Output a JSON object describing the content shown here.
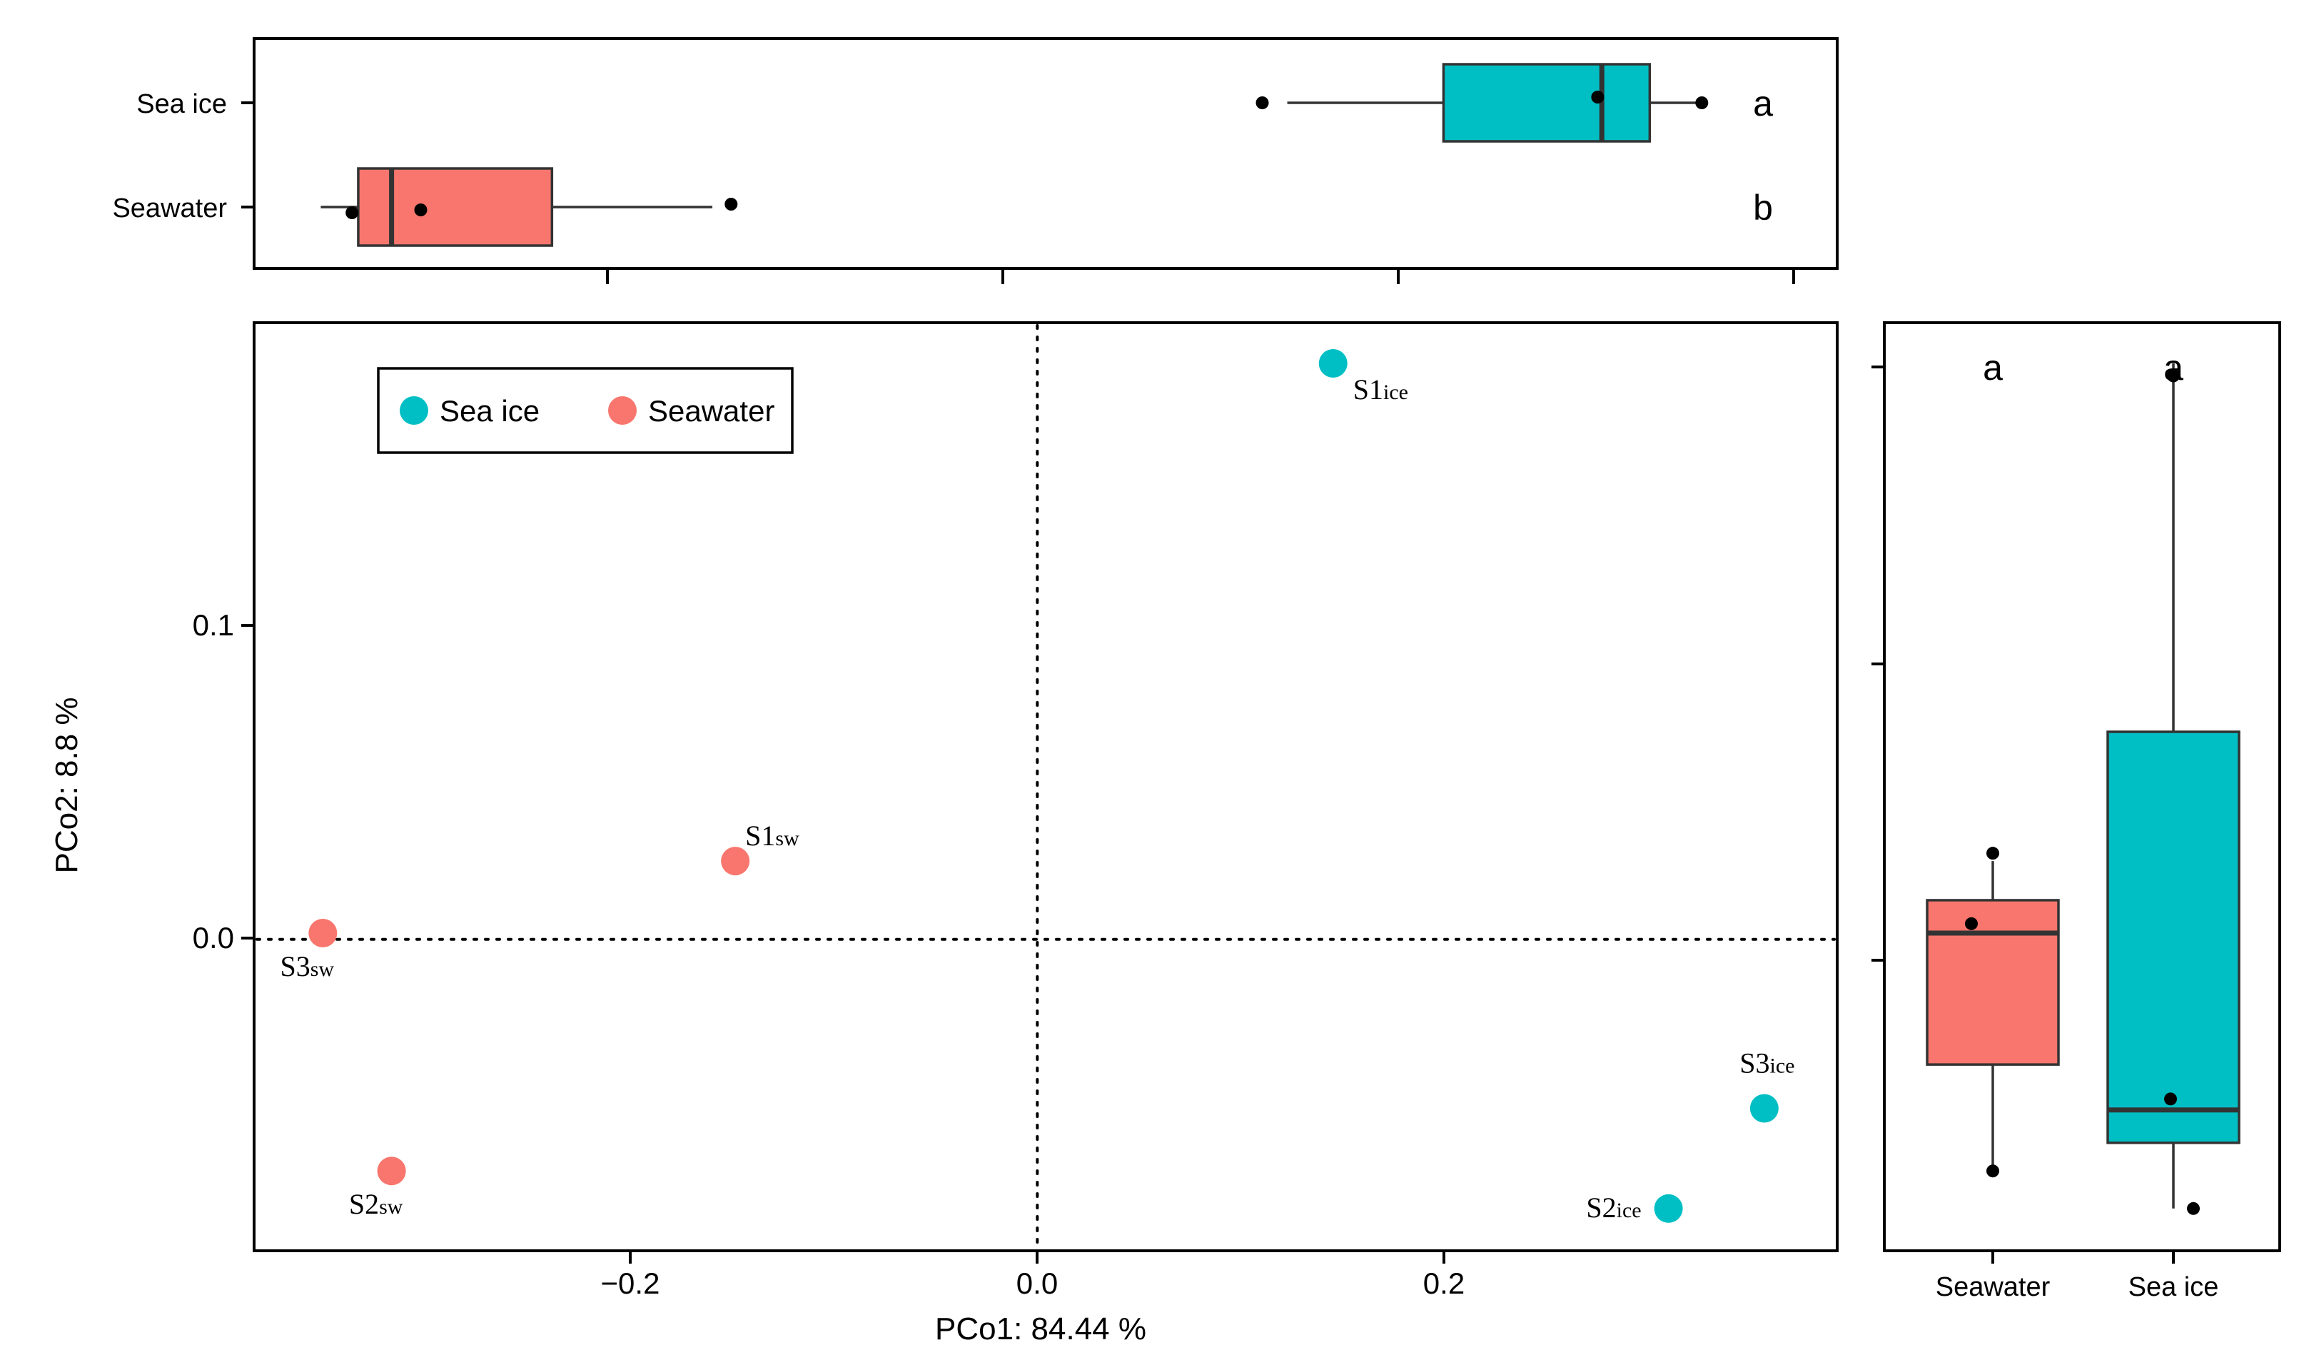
{
  "colors": {
    "sea_ice": "#00BFC4",
    "seawater": "#F8766D"
  },
  "chart_data": [
    {
      "name": "pcoa-scatter",
      "type": "scatter",
      "xlabel": "PCo1:  84.44 %",
      "ylabel": "PCo2:  8.8 %",
      "xlim": [
        -0.376,
        0.384
      ],
      "ylim": [
        -0.0995,
        0.197
      ],
      "xticks": [
        -0.2,
        0.0,
        0.2
      ],
      "xtick_labels": [
        "−0.2",
        "0.0",
        "0.2"
      ],
      "yticks": [
        0.0,
        0.1
      ],
      "ytick_labels": [
        "0.0",
        "0.1"
      ],
      "reference_lines": {
        "x": 0,
        "y": 0,
        "style": "dotted"
      },
      "legend": {
        "position": "top-left",
        "entries": [
          {
            "label": "Sea ice",
            "color": "#00BFC4"
          },
          {
            "label": "Seawater",
            "color": "#F8766D"
          }
        ]
      },
      "series": [
        {
          "name": "Sea ice",
          "color": "#00BFC4",
          "points": [
            {
              "base": "S1",
              "sub": "ice",
              "x": 0.142,
              "y": 0.184,
              "label_pos": "below-right"
            },
            {
              "base": "S2",
              "sub": "ice",
              "x": 0.303,
              "y": -0.086,
              "label_pos": "left"
            },
            {
              "base": "S3",
              "sub": "ice",
              "x": 0.349,
              "y": -0.054,
              "label_pos": "above"
            }
          ]
        },
        {
          "name": "Seawater",
          "color": "#F8766D",
          "points": [
            {
              "base": "S1",
              "sub": "sw",
              "x": -0.145,
              "y": 0.025,
              "label_pos": "above-right"
            },
            {
              "base": "S2",
              "sub": "sw",
              "x": -0.31,
              "y": -0.074,
              "label_pos": "below"
            },
            {
              "base": "S3",
              "sub": "sw",
              "x": -0.343,
              "y": 0.002,
              "label_pos": "below"
            }
          ]
        }
      ]
    },
    {
      "name": "pco1-boxplot",
      "type": "boxplot",
      "orientation": "horizontal",
      "categories": [
        "Sea ice",
        "Seawater"
      ],
      "significance_letters": [
        "a",
        "b"
      ],
      "boxes": [
        {
          "group": "Sea ice",
          "color": "#00BFC4",
          "whisker_low": 0.12,
          "q1": 0.195,
          "median": 0.271,
          "q3": 0.294,
          "whisker_high": 0.316,
          "points": [
            0.108,
            0.269,
            0.319
          ]
        },
        {
          "group": "Seawater",
          "color": "#F8766D",
          "whisker_low": -0.344,
          "q1": -0.326,
          "median": -0.31,
          "q3": -0.233,
          "whisker_high": -0.156,
          "points": [
            -0.329,
            -0.296,
            -0.147
          ]
        }
      ]
    },
    {
      "name": "pco2-boxplot",
      "type": "boxplot",
      "orientation": "vertical",
      "categories": [
        "Seawater",
        "Sea ice"
      ],
      "significance_letters": [
        "a",
        "a"
      ],
      "ylim": [
        -0.0995,
        0.197
      ],
      "boxes": [
        {
          "group": "Seawater",
          "color": "#F8766D",
          "whisker_low": -0.074,
          "q1": -0.04,
          "median": 0.002,
          "q3": 0.0125,
          "whisker_high": 0.025,
          "points": [
            -0.074,
            0.005,
            0.0275
          ]
        },
        {
          "group": "Sea ice",
          "color": "#00BFC4",
          "whisker_low": -0.086,
          "q1": -0.065,
          "median": -0.0545,
          "q3": 0.0663,
          "whisker_high": 0.184,
          "points": [
            -0.086,
            -0.051,
            0.18
          ]
        }
      ]
    }
  ]
}
